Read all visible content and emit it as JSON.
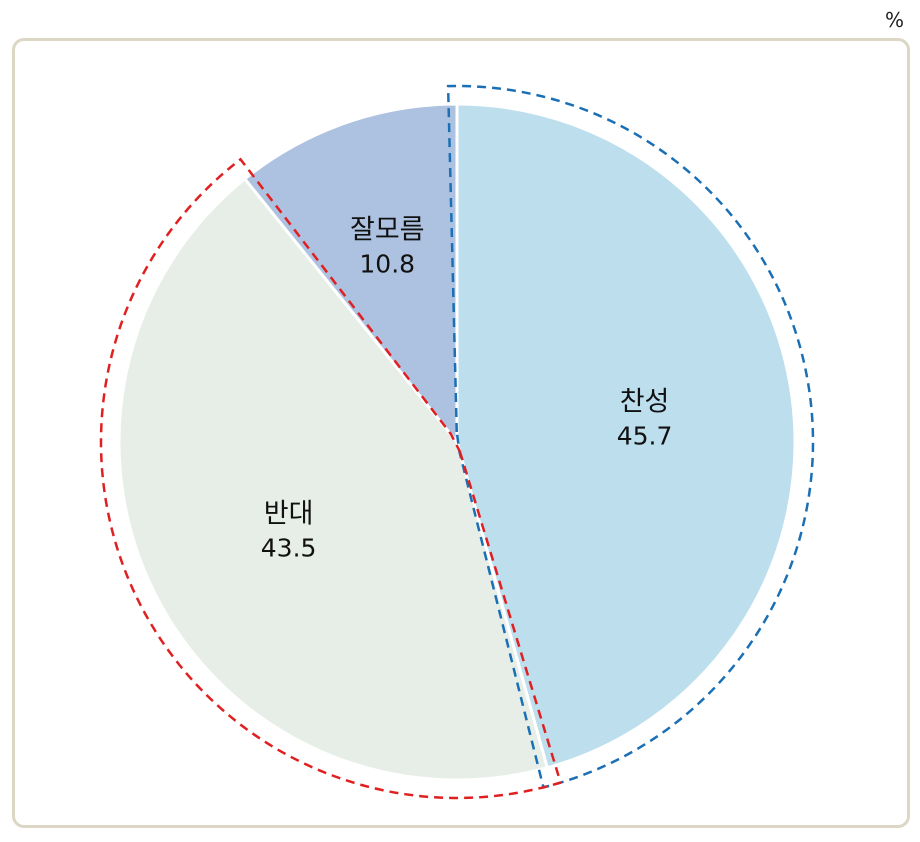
{
  "unit_label": "%",
  "chart_data": {
    "type": "pie",
    "title": "",
    "unit": "%",
    "slices": [
      {
        "label": "찬성",
        "value": 45.7,
        "color": "#bcdeed"
      },
      {
        "label": "반대",
        "value": 43.5,
        "color": "#e7eee7"
      },
      {
        "label": "잘모름",
        "value": 10.8,
        "color": "#adc2e0"
      }
    ],
    "highlight_outlines": [
      {
        "slice": "찬성",
        "color": "#1a6fb5",
        "style": "dashed"
      },
      {
        "slice": "반대",
        "color": "#e02020",
        "style": "dashed"
      }
    ]
  }
}
